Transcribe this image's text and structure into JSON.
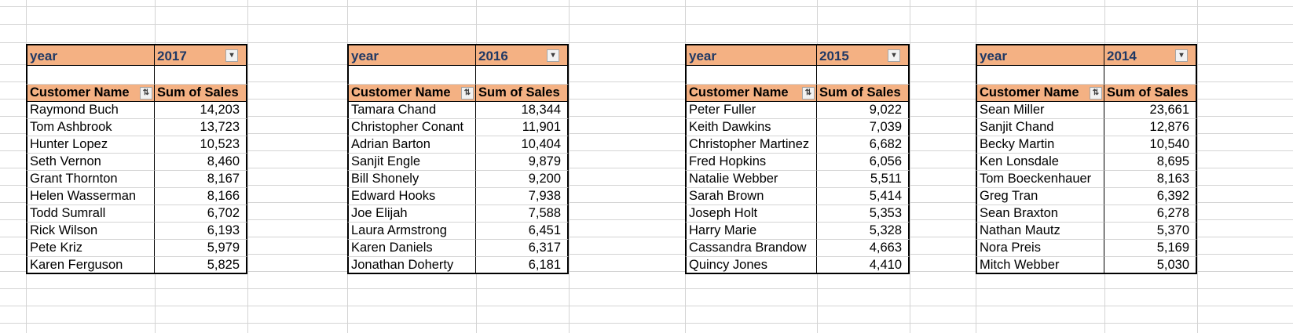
{
  "pivots": [
    {
      "filter_label": "year",
      "filter_value": "2017",
      "col_name": "Customer Name",
      "col_sales": "Sum of Sales",
      "rows": [
        {
          "name": "Raymond Buch",
          "sales": "14,203"
        },
        {
          "name": "Tom Ashbrook",
          "sales": "13,723"
        },
        {
          "name": "Hunter Lopez",
          "sales": "10,523"
        },
        {
          "name": "Seth Vernon",
          "sales": "8,460"
        },
        {
          "name": "Grant Thornton",
          "sales": "8,167"
        },
        {
          "name": "Helen Wasserman",
          "sales": "8,166"
        },
        {
          "name": "Todd Sumrall",
          "sales": "6,702"
        },
        {
          "name": "Rick Wilson",
          "sales": "6,193"
        },
        {
          "name": "Pete Kriz",
          "sales": "5,979"
        },
        {
          "name": "Karen Ferguson",
          "sales": "5,825"
        }
      ]
    },
    {
      "filter_label": "year",
      "filter_value": "2016",
      "col_name": "Customer Name",
      "col_sales": "Sum of Sales",
      "rows": [
        {
          "name": "Tamara Chand",
          "sales": "18,344"
        },
        {
          "name": "Christopher Conant",
          "sales": "11,901"
        },
        {
          "name": "Adrian Barton",
          "sales": "10,404"
        },
        {
          "name": "Sanjit Engle",
          "sales": "9,879"
        },
        {
          "name": "Bill Shonely",
          "sales": "9,200"
        },
        {
          "name": "Edward Hooks",
          "sales": "7,938"
        },
        {
          "name": "Joe Elijah",
          "sales": "7,588"
        },
        {
          "name": "Laura Armstrong",
          "sales": "6,451"
        },
        {
          "name": "Karen Daniels",
          "sales": "6,317"
        },
        {
          "name": "Jonathan Doherty",
          "sales": "6,181"
        }
      ]
    },
    {
      "filter_label": "year",
      "filter_value": "2015",
      "col_name": "Customer Name",
      "col_sales": "Sum of Sales",
      "rows": [
        {
          "name": "Peter Fuller",
          "sales": "9,022"
        },
        {
          "name": "Keith Dawkins",
          "sales": "7,039"
        },
        {
          "name": "Christopher Martinez",
          "sales": "6,682"
        },
        {
          "name": "Fred Hopkins",
          "sales": "6,056"
        },
        {
          "name": "Natalie Webber",
          "sales": "5,511"
        },
        {
          "name": "Sarah Brown",
          "sales": "5,414"
        },
        {
          "name": "Joseph Holt",
          "sales": "5,353"
        },
        {
          "name": "Harry Marie",
          "sales": "5,328"
        },
        {
          "name": "Cassandra Brandow",
          "sales": "4,663"
        },
        {
          "name": "Quincy Jones",
          "sales": "4,410"
        }
      ]
    },
    {
      "filter_label": "year",
      "filter_value": "2014",
      "col_name": "Customer Name",
      "col_sales": "Sum of Sales",
      "rows": [
        {
          "name": "Sean Miller",
          "sales": "23,661"
        },
        {
          "name": "Sanjit Chand",
          "sales": "12,876"
        },
        {
          "name": "Becky Martin",
          "sales": "10,540"
        },
        {
          "name": "Ken Lonsdale",
          "sales": "8,695"
        },
        {
          "name": "Tom Boeckenhauer",
          "sales": "8,163"
        },
        {
          "name": "Greg Tran",
          "sales": "6,392"
        },
        {
          "name": "Sean Braxton",
          "sales": "6,278"
        },
        {
          "name": "Nathan Mautz",
          "sales": "5,370"
        },
        {
          "name": "Nora Preis",
          "sales": "5,169"
        },
        {
          "name": "Mitch Webber",
          "sales": "5,030"
        }
      ]
    }
  ],
  "icons": {
    "filter_dropdown": "filter-dropdown-icon",
    "sort_filter": "sort-filter-icon"
  },
  "colors": {
    "header_fill": "#f4b183",
    "header_text": "#1f3864",
    "gridline": "#d4d4d4"
  }
}
